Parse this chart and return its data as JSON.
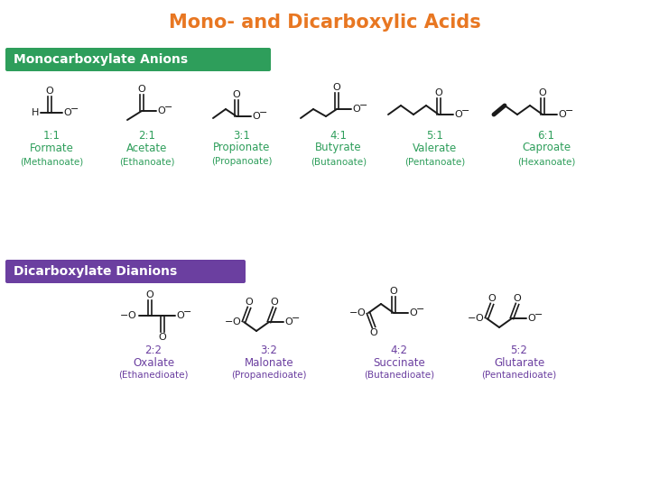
{
  "title": "Mono- and Dicarboxylic Acids",
  "title_color": "#E87722",
  "title_fontsize": 15,
  "bg_color": "#FFFFFF",
  "section1_label": "Monocarboxylate Anions",
  "section1_bg": "#2E9E5B",
  "section1_text_color": "#FFFFFF",
  "section2_label": "Dicarboxylate Dianions",
  "section2_bg": "#6B3FA0",
  "section2_text_color": "#FFFFFF",
  "mono_label_color": "#2E9E5B",
  "di_label_color": "#6B3FA0",
  "struct_color": "#1A1A1A",
  "mono_compounds": [
    {
      "ratio": "1:1",
      "name": "Formate",
      "alt": "(Methanoate)"
    },
    {
      "ratio": "2:1",
      "name": "Acetate",
      "alt": "(Ethanoate)"
    },
    {
      "ratio": "3:1",
      "name": "Propionate",
      "alt": "(Propanoate)"
    },
    {
      "ratio": "4:1",
      "name": "Butyrate",
      "alt": "(Butanoate)"
    },
    {
      "ratio": "5:1",
      "name": "Valerate",
      "alt": "(Pentanoate)"
    },
    {
      "ratio": "6:1",
      "name": "Caproate",
      "alt": "(Hexanoate)"
    }
  ],
  "di_compounds": [
    {
      "ratio": "2:2",
      "name": "Oxalate",
      "alt": "(Ethanedioate)"
    },
    {
      "ratio": "3:2",
      "name": "Malonate",
      "alt": "(Propanedioate)"
    },
    {
      "ratio": "4:2",
      "name": "Succinate",
      "alt": "(Butanedioate)"
    },
    {
      "ratio": "5:2",
      "name": "Glutarate",
      "alt": "(Pentanedioate)"
    }
  ]
}
